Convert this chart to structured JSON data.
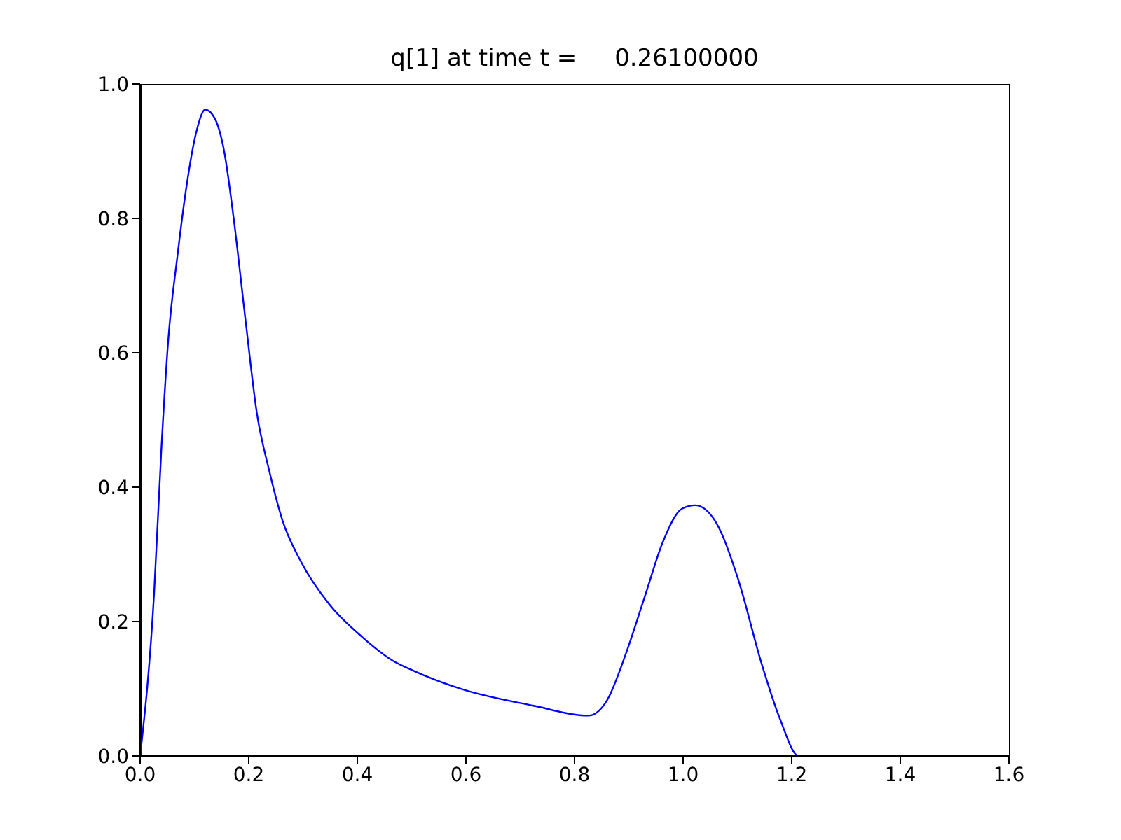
{
  "chart_data": {
    "type": "line",
    "title": "q[1] at time t =     0.26100000",
    "x": [
      0.0,
      0.026,
      0.039,
      0.052,
      0.069,
      0.086,
      0.103,
      0.12,
      0.138,
      0.155,
      0.172,
      0.194,
      0.215,
      0.237,
      0.262,
      0.297,
      0.348,
      0.409,
      0.465,
      0.503,
      0.594,
      0.723,
      0.826,
      0.86,
      0.895,
      0.929,
      0.963,
      0.998,
      1.022,
      1.058,
      1.101,
      1.144,
      1.178,
      1.213,
      1.501
    ],
    "series": [
      {
        "color": "#0000ff",
        "values": [
          0.0,
          0.246,
          0.455,
          0.621,
          0.746,
          0.851,
          0.927,
          0.962,
          0.948,
          0.899,
          0.802,
          0.649,
          0.51,
          0.427,
          0.351,
          0.288,
          0.226,
          0.177,
          0.142,
          0.127,
          0.099,
          0.075,
          0.06,
          0.083,
          0.153,
          0.236,
          0.319,
          0.368,
          0.373,
          0.351,
          0.264,
          0.139,
          0.056,
          0.0,
          0.0
        ]
      }
    ],
    "xlim": [
      0.0,
      1.6
    ],
    "xticks": [
      {
        "value": 0,
        "label": "0.0"
      },
      0.2,
      0.4,
      0.6,
      0.8,
      {
        "value": 1,
        "label": "1.0"
      },
      1.2,
      1.4,
      1.6
    ],
    "ylim": [
      0.0,
      1.0
    ],
    "yticks": [
      {
        "value": 0,
        "label": "0.0"
      },
      0.2,
      0.4,
      0.6,
      0.8,
      {
        "value": 1,
        "label": "1.0"
      }
    ],
    "grid": false,
    "marker": "none",
    "line_style": "solid"
  }
}
